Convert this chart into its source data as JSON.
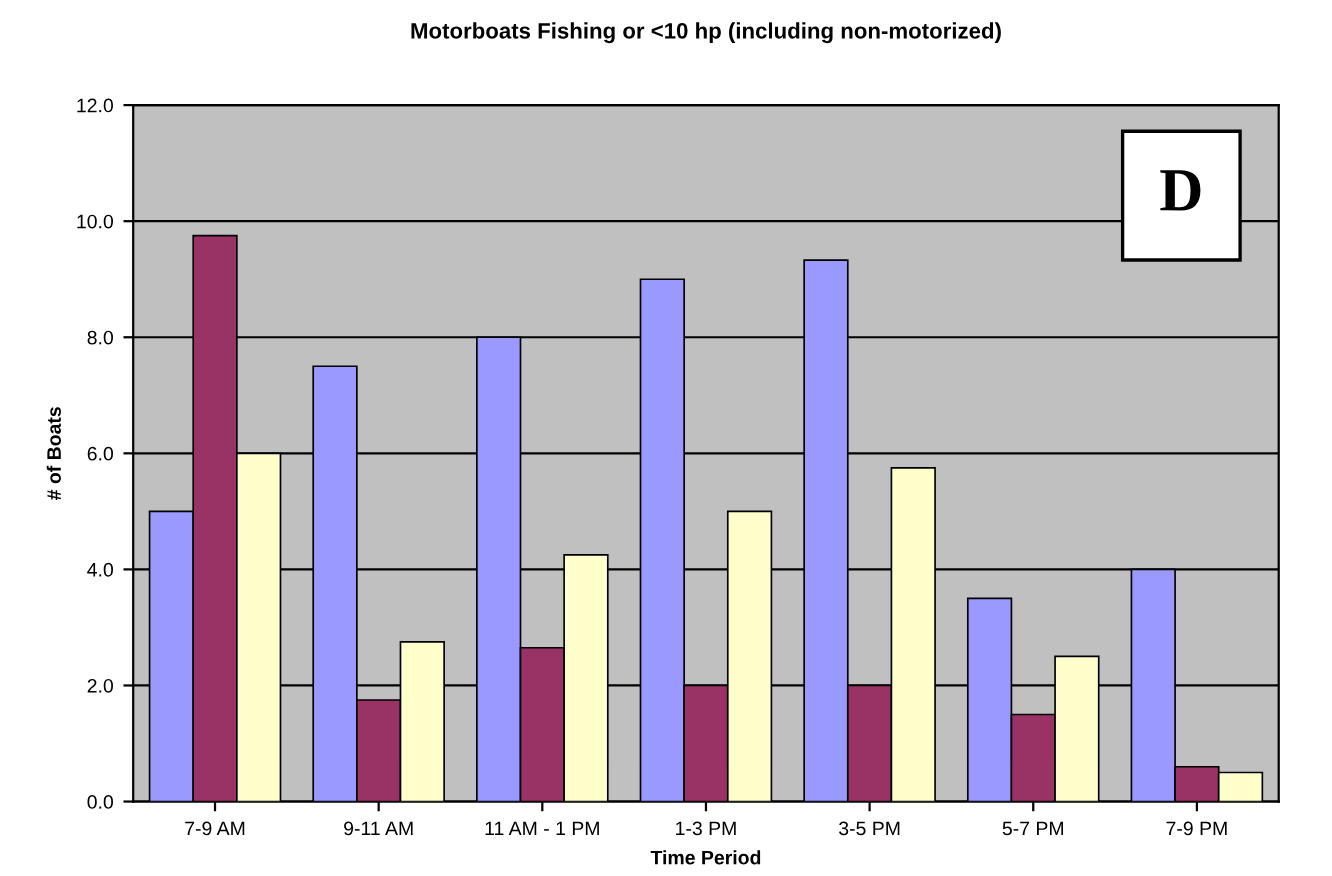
{
  "chart_data": {
    "type": "bar",
    "title": "Motorboats Fishing or <10 hp (including non-motorized)",
    "xlabel": "Time Period",
    "ylabel": "# of Boats",
    "categories": [
      "7-9 AM",
      "9-11 AM",
      "11 AM - 1 PM",
      "1-3 PM",
      "3-5 PM",
      "5-7 PM",
      "7-9 PM"
    ],
    "series": [
      {
        "color": "#9999ff",
        "values": [
          5.0,
          7.5,
          8.0,
          9.0,
          9.33,
          3.5,
          4.0
        ]
      },
      {
        "color": "#993366",
        "values": [
          9.75,
          1.75,
          2.65,
          2.0,
          2.0,
          1.5,
          0.6
        ]
      },
      {
        "color": "#ffffcc",
        "values": [
          6.0,
          2.75,
          4.25,
          5.0,
          5.75,
          2.5,
          0.5
        ]
      }
    ],
    "ylim": [
      0,
      12
    ],
    "yticks": [
      {
        "value": 0,
        "label": "0.0"
      },
      {
        "value": 2,
        "label": "2.0"
      },
      {
        "value": 4,
        "label": "4.0"
      },
      {
        "value": 6,
        "label": "6.0"
      },
      {
        "value": 8,
        "label": "8.0"
      },
      {
        "value": 10,
        "label": "10.0"
      },
      {
        "value": 12,
        "label": "12.0"
      }
    ],
    "grid": "y",
    "legend": false,
    "annotations": [
      "D"
    ]
  }
}
